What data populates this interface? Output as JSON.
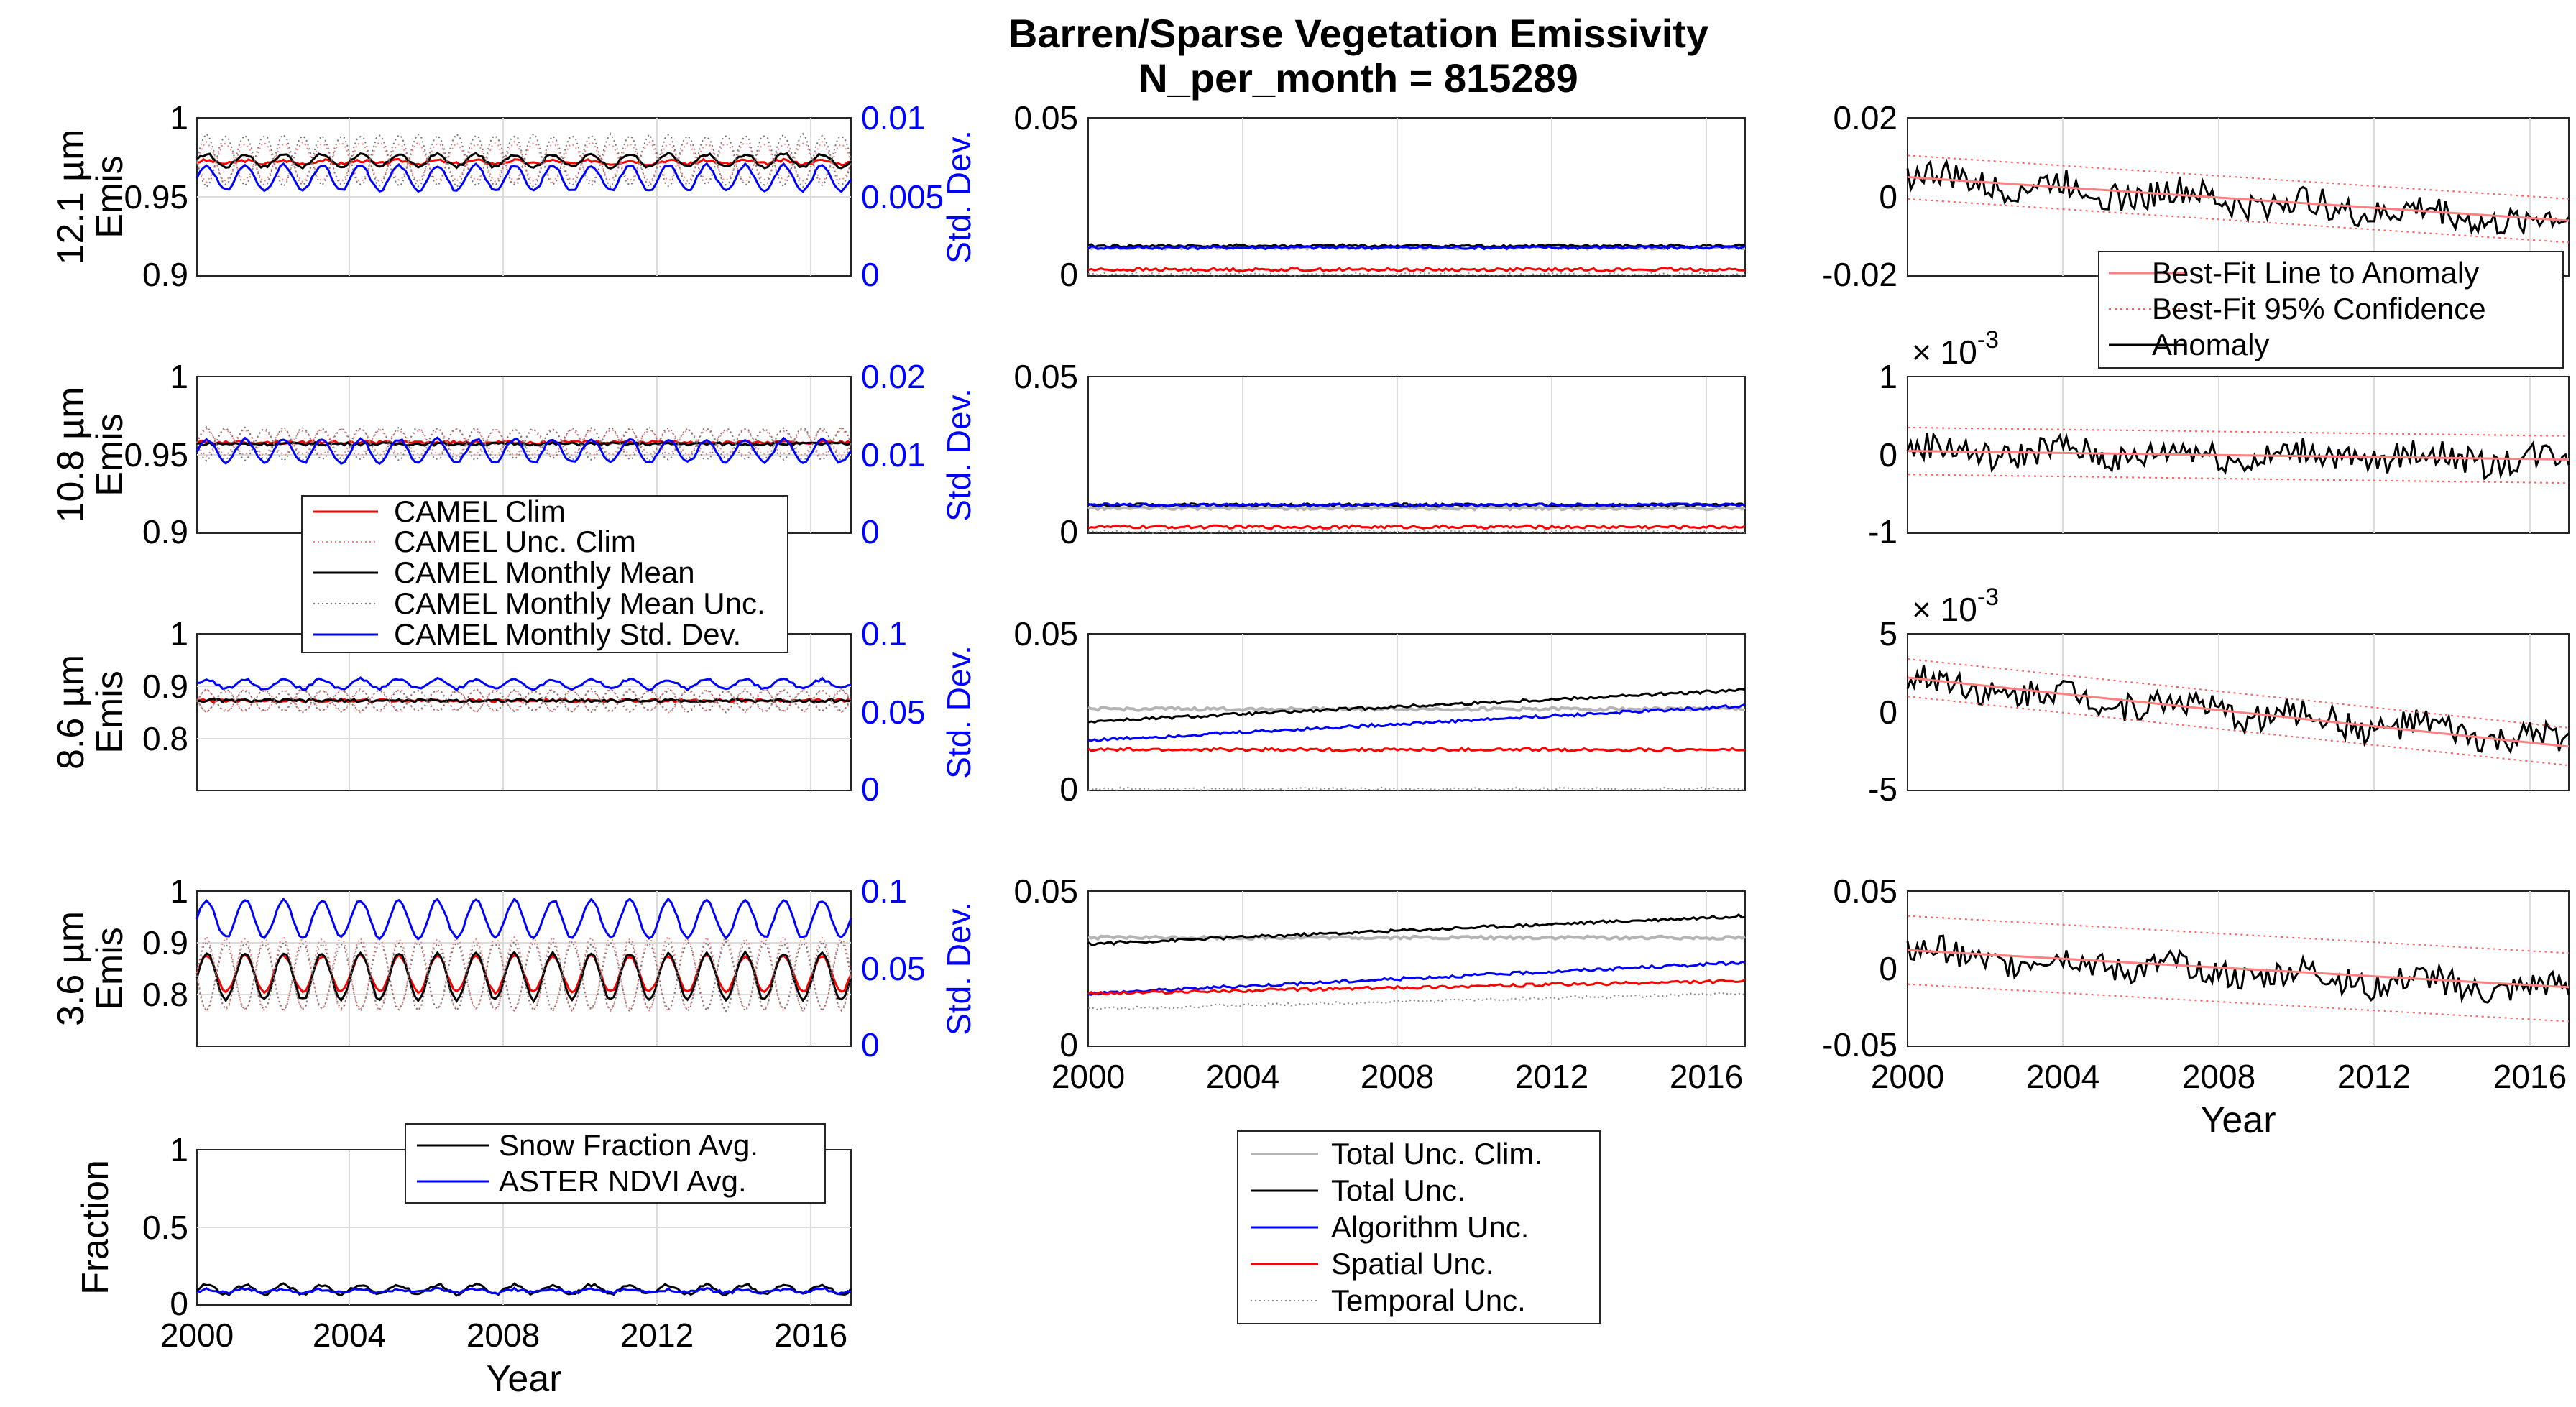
{
  "figure": {
    "title": "Barren/Sparse Vegetation Emissivity",
    "subtitle": "N_per_month = 815289"
  },
  "colors": {
    "black": "#000000",
    "red": "#ff0000",
    "blue": "#0000ff",
    "gray": "#b4b4b4",
    "lightred": "#ff8080",
    "grid": "#dcdcdc"
  },
  "chart_data": [
    {
      "id": "a1",
      "type": "line",
      "band": "12.1 µm",
      "ylabel": "12.1μm Emis",
      "y2label": "Std. Dev.",
      "xlim": [
        2000,
        2017
      ],
      "ylim": [
        0.9,
        1.0
      ],
      "yticks": [
        "0.9",
        "0.95",
        "1"
      ],
      "y2lim": [
        0,
        0.01
      ],
      "y2ticks": [
        "0",
        "0.005",
        "0.01"
      ],
      "series": [
        {
          "name": "CAMEL Clim",
          "base": 0.972,
          "amp": 0.001
        },
        {
          "name": "CAMEL Unc. Clim",
          "base": 0.972,
          "amp": 0.012
        },
        {
          "name": "CAMEL Monthly Mean",
          "base": 0.973,
          "amp": 0.004
        },
        {
          "name": "CAMEL Monthly Mean Unc.",
          "base": 0.973,
          "amp": 0.016
        },
        {
          "name": "CAMEL Monthly Std. Dev.",
          "base": 0.0062,
          "amp": 0.0008,
          "axis": "right"
        }
      ]
    },
    {
      "id": "b1",
      "type": "line",
      "band": "12.1 µm",
      "xlim": [
        2000,
        2017
      ],
      "ylim": [
        0,
        0.05
      ],
      "yticks": [
        "0",
        "0.05"
      ],
      "series": [
        {
          "name": "Total Unc. Clim.",
          "base": 0.009
        },
        {
          "name": "Total Unc.",
          "base": 0.0095
        },
        {
          "name": "Algorithm Unc.",
          "base": 0.009
        },
        {
          "name": "Spatial Unc.",
          "base": 0.002
        },
        {
          "name": "Temporal Unc.",
          "base": 0.0005
        }
      ]
    },
    {
      "id": "c1",
      "type": "line",
      "band": "12.1 µm",
      "xlim": [
        2000,
        2017
      ],
      "ylim": [
        -0.02,
        0.02
      ],
      "yticks": [
        "-0.02",
        "0",
        "0.02"
      ],
      "series": [
        {
          "name": "Anomaly",
          "start": 0.005,
          "end": -0.007
        },
        {
          "name": "Best-Fit Line to Anomaly",
          "start": 0.005,
          "end": -0.006
        },
        {
          "name": "Best-Fit 95% Confidence",
          "halfwidth": 0.0055
        }
      ]
    },
    {
      "id": "a2",
      "type": "line",
      "band": "10.8 µm",
      "ylabel": "10.8μm Emis",
      "y2label": "Std. Dev.",
      "xlim": [
        2000,
        2017
      ],
      "ylim": [
        0.9,
        1.0
      ],
      "yticks": [
        "0.9",
        "0.95",
        "1"
      ],
      "y2lim": [
        0,
        0.02
      ],
      "y2ticks": [
        "0",
        "0.01",
        "0.02"
      ],
      "series": [
        {
          "name": "CAMEL Clim",
          "base": 0.958
        },
        {
          "name": "CAMEL Unc. Clim",
          "base": 0.958,
          "amp": 0.008
        },
        {
          "name": "CAMEL Monthly Mean",
          "base": 0.957
        },
        {
          "name": "CAMEL Monthly Mean Unc.",
          "base": 0.957,
          "amp": 0.01
        },
        {
          "name": "CAMEL Monthly Std. Dev.",
          "base": 0.0105,
          "amp": 0.0015,
          "axis": "right"
        }
      ]
    },
    {
      "id": "b2",
      "type": "line",
      "band": "10.8 µm",
      "xlim": [
        2000,
        2017
      ],
      "ylim": [
        0,
        0.05
      ],
      "yticks": [
        "0",
        "0.05"
      ],
      "series": [
        {
          "name": "Total Unc. Clim.",
          "base": 0.008
        },
        {
          "name": "Total Unc.",
          "base": 0.009
        },
        {
          "name": "Algorithm Unc.",
          "base": 0.009
        },
        {
          "name": "Spatial Unc.",
          "base": 0.002
        },
        {
          "name": "Temporal Unc.",
          "base": 0.0005
        }
      ]
    },
    {
      "id": "c2",
      "type": "line",
      "band": "10.8 µm",
      "xlim": [
        2000,
        2017
      ],
      "ylim": [
        -0.001,
        0.001
      ],
      "yticks": [
        "-1",
        "0",
        "1"
      ],
      "exponent": "× 10^-3",
      "series": [
        {
          "name": "Anomaly",
          "start": 5e-05,
          "end": -6e-05
        },
        {
          "name": "Best-Fit Line to Anomaly",
          "start": 5e-05,
          "end": -6e-05
        },
        {
          "name": "Best-Fit 95% Confidence",
          "halfwidth": 0.0003
        }
      ]
    },
    {
      "id": "a3",
      "type": "line",
      "band": "8.6 µm",
      "ylabel": "8.6μm Emis",
      "y2label": "Std. Dev.",
      "xlim": [
        2000,
        2017
      ],
      "ylim": [
        0.7,
        1.0
      ],
      "yticks": [
        "0.8",
        "0.9",
        "1"
      ],
      "y2lim": [
        0,
        0.1
      ],
      "y2ticks": [
        "0",
        "0.05",
        "0.1"
      ],
      "series": [
        {
          "name": "CAMEL Clim",
          "base": 0.872
        },
        {
          "name": "CAMEL Unc. Clim",
          "base": 0.872,
          "amp": 0.02
        },
        {
          "name": "CAMEL Monthly Mean",
          "base": 0.872
        },
        {
          "name": "CAMEL Monthly Mean Unc.",
          "base": 0.872,
          "amp": 0.02
        },
        {
          "name": "CAMEL Monthly Std. Dev.",
          "base": 0.068,
          "amp": 0.003,
          "axis": "right"
        }
      ]
    },
    {
      "id": "b3",
      "type": "line",
      "band": "8.6 µm",
      "xlim": [
        2000,
        2017
      ],
      "ylim": [
        0,
        0.05
      ],
      "yticks": [
        "0",
        "0.05"
      ],
      "series": [
        {
          "name": "Total Unc. Clim.",
          "base": 0.026
        },
        {
          "name": "Total Unc.",
          "base": 0.022,
          "end": 0.032
        },
        {
          "name": "Algorithm Unc.",
          "base": 0.016,
          "end": 0.027
        },
        {
          "name": "Spatial Unc.",
          "base": 0.013
        },
        {
          "name": "Temporal Unc.",
          "base": 0.0005
        }
      ]
    },
    {
      "id": "c3",
      "type": "line",
      "band": "8.6 µm",
      "xlim": [
        2000,
        2017
      ],
      "ylim": [
        -0.005,
        0.005
      ],
      "yticks": [
        "-5",
        "0",
        "5"
      ],
      "exponent": "× 10^-3",
      "series": [
        {
          "name": "Anomaly",
          "start": 0.002,
          "end": -0.002
        },
        {
          "name": "Best-Fit Line to Anomaly",
          "start": 0.0022,
          "end": -0.0022
        },
        {
          "name": "Best-Fit 95% Confidence",
          "halfwidth": 0.0012
        }
      ]
    },
    {
      "id": "a4",
      "type": "line",
      "band": "3.6 µm",
      "ylabel": "3.6μm Emis",
      "y2label": "Std. Dev.",
      "xlim": [
        2000,
        2017
      ],
      "ylim": [
        0.7,
        1.0
      ],
      "yticks": [
        "0.8",
        "0.9",
        "1"
      ],
      "y2lim": [
        0,
        0.1
      ],
      "y2ticks": [
        "0",
        "0.05",
        "0.1"
      ],
      "series": [
        {
          "name": "CAMEL Clim",
          "base": 0.84,
          "amp": 0.035
        },
        {
          "name": "CAMEL Unc. Clim",
          "base": 0.84,
          "amp": 0.07
        },
        {
          "name": "CAMEL Monthly Mean",
          "base": 0.835,
          "amp": 0.045
        },
        {
          "name": "CAMEL Monthly Mean Unc.",
          "base": 0.835,
          "amp": 0.065
        },
        {
          "name": "CAMEL Monthly Std. Dev.",
          "base": 0.082,
          "amp": 0.012,
          "axis": "right"
        }
      ]
    },
    {
      "id": "b4",
      "type": "line",
      "band": "3.6 µm",
      "xlim": [
        2000,
        2017
      ],
      "ylim": [
        0,
        0.05
      ],
      "yticks": [
        "0",
        "0.05"
      ],
      "series": [
        {
          "name": "Total Unc. Clim.",
          "base": 0.035
        },
        {
          "name": "Total Unc.",
          "base": 0.033,
          "end": 0.042
        },
        {
          "name": "Algorithm Unc.",
          "base": 0.017,
          "end": 0.027
        },
        {
          "name": "Spatial Unc.",
          "base": 0.017,
          "end": 0.021
        },
        {
          "name": "Temporal Unc.",
          "base": 0.012,
          "end": 0.017
        }
      ]
    },
    {
      "id": "c4",
      "type": "line",
      "band": "3.6 µm",
      "xlim": [
        2000,
        2017
      ],
      "ylim": [
        -0.05,
        0.05
      ],
      "yticks": [
        "-0.05",
        "0",
        "0.05"
      ],
      "xticks": [
        "2000",
        "2004",
        "2008",
        "2012",
        "2016"
      ],
      "xlabel": "Year",
      "series": [
        {
          "name": "Anomaly",
          "start": 0.01,
          "end": -0.015
        },
        {
          "name": "Best-Fit Line to Anomaly",
          "start": 0.012,
          "end": -0.012
        },
        {
          "name": "Best-Fit 95% Confidence",
          "halfwidth": 0.022
        }
      ]
    },
    {
      "id": "a5",
      "type": "line",
      "ylabel": "Fraction",
      "xlim": [
        2000,
        2017
      ],
      "ylim": [
        0,
        1
      ],
      "yticks": [
        "0",
        "0.5",
        "1"
      ],
      "xticks": [
        "2000",
        "2004",
        "2008",
        "2012",
        "2016"
      ],
      "xlabel": "Year",
      "series": [
        {
          "name": "Snow Fraction Avg.",
          "base": 0.1,
          "amp": 0.03
        },
        {
          "name": "ASTER NDVI Avg.",
          "base": 0.09,
          "amp": 0.01
        }
      ]
    }
  ],
  "legends": {
    "camel": [
      "CAMEL Clim",
      "CAMEL Unc. Clim",
      "CAMEL Monthly Mean",
      "CAMEL Monthly Mean Unc.",
      "CAMEL Monthly Std. Dev."
    ],
    "unc": [
      "Total Unc. Clim.",
      "Total Unc.",
      "Algorithm Unc.",
      "Spatial Unc.",
      "Temporal Unc."
    ],
    "anom": [
      "Best-Fit Line to Anomaly",
      "Best-Fit 95% Confidence",
      "Anomaly"
    ],
    "frac": [
      "Snow Fraction Avg.",
      "ASTER NDVI Avg."
    ]
  },
  "xticks": [
    "2000",
    "2004",
    "2008",
    "2012",
    "2016"
  ],
  "xlabel": "Year"
}
